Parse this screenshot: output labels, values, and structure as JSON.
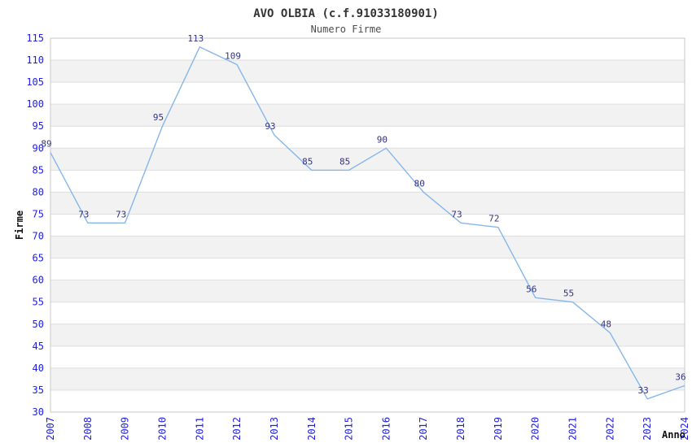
{
  "chart_data": {
    "type": "line",
    "title": "AVO OLBIA (c.f.91033180901)",
    "subtitle": "Numero Firme",
    "xlabel": "Anno",
    "ylabel": "Firme",
    "categories": [
      "2007",
      "2008",
      "2009",
      "2010",
      "2011",
      "2012",
      "2013",
      "2014",
      "2015",
      "2016",
      "2017",
      "2018",
      "2019",
      "2020",
      "2021",
      "2022",
      "2023",
      "2024"
    ],
    "values": [
      89,
      73,
      73,
      95,
      113,
      109,
      93,
      85,
      85,
      90,
      80,
      73,
      72,
      56,
      55,
      48,
      33,
      36
    ],
    "ylim": [
      30,
      115
    ],
    "ytick_step": 5,
    "grid": "horizontal-bands-alternating",
    "legend": "none",
    "colors": {
      "line": "#86b7e8",
      "tick_labels": "#2020dd",
      "data_labels": "#333380",
      "band_fill": "#f2f2f2",
      "grid_line": "#dedede",
      "plot_border": "#c9c9c9",
      "title": "#333333",
      "subtitle": "#4d4d4d",
      "axis_title": "#111111",
      "background": "#ffffff"
    }
  }
}
